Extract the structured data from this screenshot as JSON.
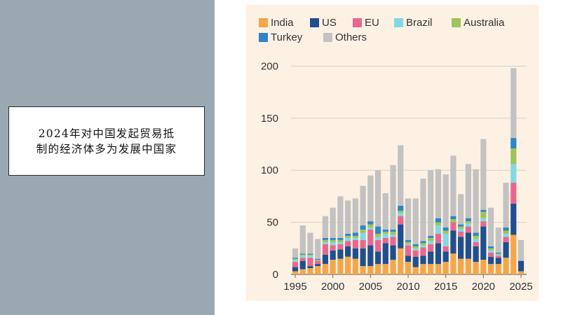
{
  "caption": {
    "line1": "2024年对中国发起贸易抵",
    "line2": "制的经济体多为发展中国家"
  },
  "colors": {
    "India": "#f4a64a",
    "US": "#1f4f8f",
    "EU": "#e8678f",
    "Brazil": "#82d9e3",
    "Australia": "#9fc45a",
    "Turkey": "#2e86c8",
    "Others": "#c2c2c2"
  },
  "chart_data": {
    "type": "bar",
    "stacked": true,
    "title": "",
    "xlabel": "",
    "ylabel": "",
    "ylim": [
      0,
      205
    ],
    "yticks": [
      0,
      50,
      100,
      150,
      200
    ],
    "xticks": [
      1995,
      2000,
      2005,
      2010,
      2015,
      2020,
      2025
    ],
    "legend": [
      "India",
      "US",
      "EU",
      "Brazil",
      "Australia",
      "Turkey",
      "Others"
    ],
    "legend_position": "top-left",
    "categories": [
      1995,
      1996,
      1997,
      1998,
      1999,
      2000,
      2001,
      2002,
      2003,
      2004,
      2005,
      2006,
      2007,
      2008,
      2009,
      2010,
      2011,
      2012,
      2013,
      2014,
      2015,
      2016,
      2017,
      2018,
      2019,
      2020,
      2021,
      2022,
      2023,
      2024,
      2025
    ],
    "series": [
      {
        "name": "India",
        "values": [
          3,
          5,
          6,
          8,
          10,
          14,
          15,
          17,
          15,
          8,
          8,
          10,
          10,
          14,
          25,
          12,
          7,
          10,
          10,
          10,
          12,
          20,
          15,
          15,
          12,
          14,
          10,
          10,
          16,
          38,
          3
        ]
      },
      {
        "name": "US",
        "values": [
          4,
          8,
          2,
          2,
          9,
          9,
          9,
          10,
          10,
          17,
          20,
          12,
          20,
          14,
          23,
          6,
          10,
          8,
          12,
          20,
          10,
          22,
          21,
          25,
          15,
          32,
          7,
          6,
          15,
          30,
          10
        ]
      },
      {
        "name": "EU",
        "values": [
          5,
          3,
          8,
          3,
          10,
          5,
          5,
          5,
          8,
          8,
          15,
          11,
          5,
          8,
          8,
          10,
          6,
          8,
          7,
          9,
          5,
          8,
          5,
          6,
          4,
          5,
          4,
          2,
          5,
          20,
          0
        ]
      },
      {
        "name": "Brazil",
        "values": [
          2,
          2,
          2,
          0,
          2,
          3,
          2,
          3,
          2,
          7,
          2,
          3,
          4,
          2,
          3,
          1,
          2,
          2,
          3,
          8,
          12,
          0,
          3,
          3,
          3,
          3,
          2,
          1,
          3,
          18,
          0
        ]
      },
      {
        "name": "Australia",
        "values": [
          1,
          1,
          1,
          1,
          2,
          2,
          2,
          2,
          2,
          3,
          3,
          3,
          2,
          3,
          2,
          2,
          2,
          2,
          3,
          3,
          3,
          3,
          2,
          2,
          3,
          6,
          2,
          1,
          3,
          15,
          0
        ]
      },
      {
        "name": "Turkey",
        "values": [
          1,
          1,
          1,
          1,
          2,
          2,
          2,
          2,
          3,
          4,
          3,
          7,
          2,
          2,
          5,
          2,
          2,
          2,
          2,
          4,
          3,
          3,
          2,
          3,
          3,
          2,
          2,
          1,
          3,
          10,
          0
        ]
      },
      {
        "name": "Others",
        "values": [
          9,
          27,
          20,
          19,
          21,
          29,
          40,
          32,
          33,
          38,
          44,
          54,
          35,
          62,
          58,
          40,
          44,
          60,
          63,
          47,
          51,
          58,
          29,
          52,
          61,
          68,
          37,
          24,
          43,
          67,
          20
        ]
      }
    ]
  }
}
